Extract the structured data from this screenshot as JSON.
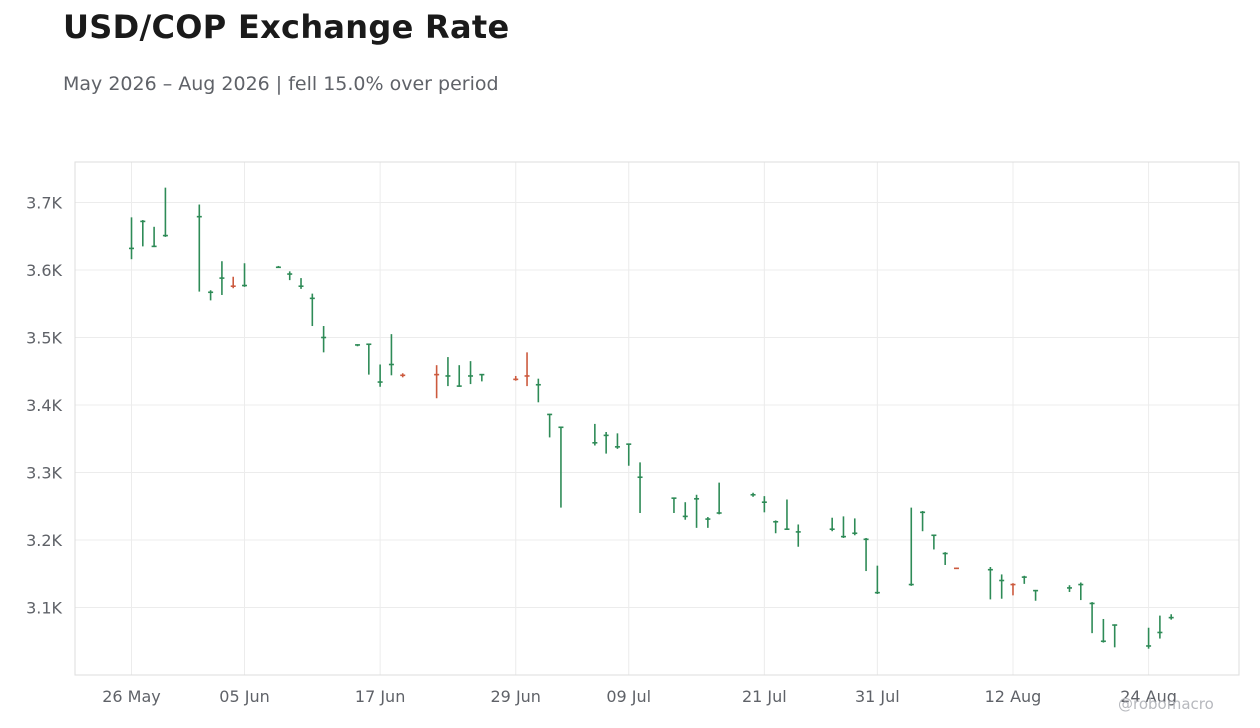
{
  "title": "USD/COP Exchange Rate",
  "subtitle": "May 2026 – Aug 2026 | fell 15.0% over period",
  "watermark": "@robomacro",
  "colors": {
    "up": "#2e8b57",
    "down": "#cc5a3e",
    "grid": "#ececec",
    "frame": "#dddddd",
    "text": "#5f6268"
  },
  "chart_data": {
    "type": "ohlc",
    "title": "USD/COP Exchange Rate",
    "subtitle": "May 2026 – Aug 2026 | fell 15.0% over period",
    "ylim": [
      3000,
      3760
    ],
    "y_ticks": [
      3100,
      3200,
      3300,
      3400,
      3500,
      3600,
      3700
    ],
    "y_tick_labels": [
      "3.1K",
      "3.2K",
      "3.3K",
      "3.4K",
      "3.5K",
      "3.6K",
      "3.7K"
    ],
    "x_range": [
      "2026-05-21",
      "2026-09-01"
    ],
    "x_ticks": [
      "2026-05-26",
      "2026-06-05",
      "2026-06-17",
      "2026-06-29",
      "2026-07-09",
      "2026-07-21",
      "2026-07-31",
      "2026-08-12",
      "2026-08-24"
    ],
    "x_tick_labels": [
      "26 May",
      "05 Jun",
      "17 Jun",
      "29 Jun",
      "09 Jul",
      "21 Jul",
      "31 Jul",
      "12 Aug",
      "24 Aug"
    ],
    "grid": true,
    "bars": [
      {
        "date": "2026-05-26",
        "open": 3632,
        "high": 3678,
        "low": 3616,
        "close": 3632,
        "dir": "up"
      },
      {
        "date": "2026-05-27",
        "open": 3672,
        "high": 3674,
        "low": 3635,
        "close": 3672,
        "dir": "up"
      },
      {
        "date": "2026-05-28",
        "open": 3635,
        "high": 3664,
        "low": 3634,
        "close": 3635,
        "dir": "up"
      },
      {
        "date": "2026-05-29",
        "open": 3651,
        "high": 3722,
        "low": 3649,
        "close": 3651,
        "dir": "up"
      },
      {
        "date": "2026-06-01",
        "open": 3679,
        "high": 3697,
        "low": 3568,
        "close": 3679,
        "dir": "up"
      },
      {
        "date": "2026-06-02",
        "open": 3567,
        "high": 3570,
        "low": 3555,
        "close": 3567,
        "dir": "up"
      },
      {
        "date": "2026-06-03",
        "open": 3588,
        "high": 3613,
        "low": 3563,
        "close": 3588,
        "dir": "up"
      },
      {
        "date": "2026-06-04",
        "open": 3576,
        "high": 3590,
        "low": 3573,
        "close": 3576,
        "dir": "down"
      },
      {
        "date": "2026-06-05",
        "open": 3577,
        "high": 3610,
        "low": 3575,
        "close": 3577,
        "dir": "up"
      },
      {
        "date": "2026-06-08",
        "open": 3604,
        "high": 3606,
        "low": 3603,
        "close": 3604,
        "dir": "up"
      },
      {
        "date": "2026-06-09",
        "open": 3594,
        "high": 3598,
        "low": 3585,
        "close": 3594,
        "dir": "up"
      },
      {
        "date": "2026-06-10",
        "open": 3576,
        "high": 3588,
        "low": 3572,
        "close": 3576,
        "dir": "up"
      },
      {
        "date": "2026-06-11",
        "open": 3558,
        "high": 3565,
        "low": 3517,
        "close": 3558,
        "dir": "up"
      },
      {
        "date": "2026-06-12",
        "open": 3500,
        "high": 3517,
        "low": 3478,
        "close": 3500,
        "dir": "up"
      },
      {
        "date": "2026-06-15",
        "open": 3489,
        "high": 3490,
        "low": 3487,
        "close": 3489,
        "dir": "up"
      },
      {
        "date": "2026-06-16",
        "open": 3490,
        "high": 3491,
        "low": 3445,
        "close": 3490,
        "dir": "up"
      },
      {
        "date": "2026-06-17",
        "open": 3434,
        "high": 3460,
        "low": 3427,
        "close": 3434,
        "dir": "up"
      },
      {
        "date": "2026-06-18",
        "open": 3460,
        "high": 3505,
        "low": 3444,
        "close": 3460,
        "dir": "up"
      },
      {
        "date": "2026-06-19",
        "open": 3444,
        "high": 3447,
        "low": 3441,
        "close": 3444,
        "dir": "down"
      },
      {
        "date": "2026-06-22",
        "open": 3445,
        "high": 3459,
        "low": 3410,
        "close": 3445,
        "dir": "down"
      },
      {
        "date": "2026-06-23",
        "open": 3443,
        "high": 3471,
        "low": 3428,
        "close": 3443,
        "dir": "up"
      },
      {
        "date": "2026-06-24",
        "open": 3428,
        "high": 3459,
        "low": 3427,
        "close": 3428,
        "dir": "up"
      },
      {
        "date": "2026-06-25",
        "open": 3443,
        "high": 3465,
        "low": 3431,
        "close": 3443,
        "dir": "up"
      },
      {
        "date": "2026-06-26",
        "open": 3445,
        "high": 3446,
        "low": 3435,
        "close": 3445,
        "dir": "up"
      },
      {
        "date": "2026-06-29",
        "open": 3438,
        "high": 3443,
        "low": 3436,
        "close": 3438,
        "dir": "down"
      },
      {
        "date": "2026-06-30",
        "open": 3443,
        "high": 3478,
        "low": 3428,
        "close": 3443,
        "dir": "down"
      },
      {
        "date": "2026-07-01",
        "open": 3430,
        "high": 3439,
        "low": 3404,
        "close": 3430,
        "dir": "up"
      },
      {
        "date": "2026-07-02",
        "open": 3386,
        "high": 3387,
        "low": 3352,
        "close": 3386,
        "dir": "up"
      },
      {
        "date": "2026-07-03",
        "open": 3367,
        "high": 3368,
        "low": 3248,
        "close": 3367,
        "dir": "up"
      },
      {
        "date": "2026-07-06",
        "open": 3344,
        "high": 3372,
        "low": 3340,
        "close": 3344,
        "dir": "up"
      },
      {
        "date": "2026-07-07",
        "open": 3355,
        "high": 3360,
        "low": 3328,
        "close": 3355,
        "dir": "up"
      },
      {
        "date": "2026-07-08",
        "open": 3338,
        "high": 3358,
        "low": 3335,
        "close": 3338,
        "dir": "up"
      },
      {
        "date": "2026-07-09",
        "open": 3342,
        "high": 3343,
        "low": 3310,
        "close": 3342,
        "dir": "up"
      },
      {
        "date": "2026-07-10",
        "open": 3293,
        "high": 3315,
        "low": 3240,
        "close": 3293,
        "dir": "up"
      },
      {
        "date": "2026-07-13",
        "open": 3262,
        "high": 3263,
        "low": 3240,
        "close": 3262,
        "dir": "up"
      },
      {
        "date": "2026-07-14",
        "open": 3235,
        "high": 3256,
        "low": 3230,
        "close": 3235,
        "dir": "up"
      },
      {
        "date": "2026-07-15",
        "open": 3261,
        "high": 3267,
        "low": 3218,
        "close": 3261,
        "dir": "up"
      },
      {
        "date": "2026-07-16",
        "open": 3231,
        "high": 3234,
        "low": 3218,
        "close": 3231,
        "dir": "up"
      },
      {
        "date": "2026-07-17",
        "open": 3240,
        "high": 3285,
        "low": 3238,
        "close": 3240,
        "dir": "up"
      },
      {
        "date": "2026-07-20",
        "open": 3267,
        "high": 3270,
        "low": 3264,
        "close": 3267,
        "dir": "up"
      },
      {
        "date": "2026-07-21",
        "open": 3256,
        "high": 3265,
        "low": 3241,
        "close": 3256,
        "dir": "up"
      },
      {
        "date": "2026-07-22",
        "open": 3227,
        "high": 3229,
        "low": 3210,
        "close": 3227,
        "dir": "up"
      },
      {
        "date": "2026-07-23",
        "open": 3216,
        "high": 3260,
        "low": 3215,
        "close": 3216,
        "dir": "up"
      },
      {
        "date": "2026-07-24",
        "open": 3212,
        "high": 3223,
        "low": 3190,
        "close": 3212,
        "dir": "up"
      },
      {
        "date": "2026-07-27",
        "open": 3216,
        "high": 3233,
        "low": 3213,
        "close": 3216,
        "dir": "up"
      },
      {
        "date": "2026-07-28",
        "open": 3205,
        "high": 3235,
        "low": 3203,
        "close": 3205,
        "dir": "up"
      },
      {
        "date": "2026-07-29",
        "open": 3210,
        "high": 3232,
        "low": 3207,
        "close": 3210,
        "dir": "up"
      },
      {
        "date": "2026-07-30",
        "open": 3201,
        "high": 3203,
        "low": 3154,
        "close": 3201,
        "dir": "up"
      },
      {
        "date": "2026-07-31",
        "open": 3122,
        "high": 3162,
        "low": 3120,
        "close": 3122,
        "dir": "up"
      },
      {
        "date": "2026-08-03",
        "open": 3134,
        "high": 3248,
        "low": 3132,
        "close": 3134,
        "dir": "up"
      },
      {
        "date": "2026-08-04",
        "open": 3241,
        "high": 3243,
        "low": 3213,
        "close": 3241,
        "dir": "up"
      },
      {
        "date": "2026-08-05",
        "open": 3207,
        "high": 3208,
        "low": 3186,
        "close": 3207,
        "dir": "up"
      },
      {
        "date": "2026-08-06",
        "open": 3180,
        "high": 3182,
        "low": 3163,
        "close": 3180,
        "dir": "up"
      },
      {
        "date": "2026-08-07",
        "open": 3158,
        "high": 3159,
        "low": 3157,
        "close": 3158,
        "dir": "down"
      },
      {
        "date": "2026-08-10",
        "open": 3156,
        "high": 3160,
        "low": 3112,
        "close": 3156,
        "dir": "up"
      },
      {
        "date": "2026-08-11",
        "open": 3140,
        "high": 3149,
        "low": 3113,
        "close": 3140,
        "dir": "up"
      },
      {
        "date": "2026-08-12",
        "open": 3134,
        "high": 3136,
        "low": 3118,
        "close": 3134,
        "dir": "down"
      },
      {
        "date": "2026-08-13",
        "open": 3145,
        "high": 3147,
        "low": 3135,
        "close": 3145,
        "dir": "up"
      },
      {
        "date": "2026-08-14",
        "open": 3125,
        "high": 3126,
        "low": 3110,
        "close": 3125,
        "dir": "up"
      },
      {
        "date": "2026-08-17",
        "open": 3129,
        "high": 3133,
        "low": 3123,
        "close": 3129,
        "dir": "up"
      },
      {
        "date": "2026-08-18",
        "open": 3134,
        "high": 3137,
        "low": 3111,
        "close": 3134,
        "dir": "up"
      },
      {
        "date": "2026-08-19",
        "open": 3106,
        "high": 3108,
        "low": 3062,
        "close": 3106,
        "dir": "up"
      },
      {
        "date": "2026-08-20",
        "open": 3050,
        "high": 3083,
        "low": 3048,
        "close": 3050,
        "dir": "up"
      },
      {
        "date": "2026-08-21",
        "open": 3074,
        "high": 3075,
        "low": 3041,
        "close": 3074,
        "dir": "up"
      },
      {
        "date": "2026-08-24",
        "open": 3043,
        "high": 3070,
        "low": 3039,
        "close": 3043,
        "dir": "up"
      },
      {
        "date": "2026-08-25",
        "open": 3063,
        "high": 3088,
        "low": 3054,
        "close": 3063,
        "dir": "up"
      },
      {
        "date": "2026-08-26",
        "open": 3085,
        "high": 3090,
        "low": 3082,
        "close": 3085,
        "dir": "up"
      }
    ]
  }
}
